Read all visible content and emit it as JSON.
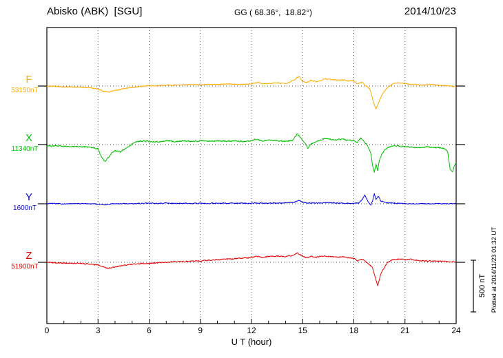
{
  "header": {
    "station": "Abisko (ABK)  [SGU]",
    "coords": "GG ( 68.36°,  18.82°)",
    "date": "2014/10/23"
  },
  "footer_note": "Plotted at 2014/11/23 01:32 UT",
  "scalebar": {
    "label": "500 nT",
    "nT": 500
  },
  "chart_data": {
    "type": "line",
    "title": "Abisko (ABK) [SGU] magnetogram 2014/10/23",
    "xlabel": "U T (hour)",
    "ylabel": "",
    "x_range": [
      0,
      24
    ],
    "x_ticks": [
      0,
      3,
      6,
      9,
      12,
      15,
      18,
      21,
      24
    ],
    "scale_nT": 500,
    "grid": "dotted vertical every 3 h, dotted horizontal baseline per component",
    "legend_position": "left of each trace",
    "series": [
      {
        "name": "F",
        "value_label": "53150nT",
        "baseline_nT": 53150,
        "color": "#ffaa00",
        "keypoints": [
          [
            0,
            0
          ],
          [
            0.5,
            -4
          ],
          [
            1,
            -8
          ],
          [
            1.5,
            -10
          ],
          [
            2,
            -12
          ],
          [
            2.5,
            -16
          ],
          [
            3,
            -28
          ],
          [
            3.3,
            -48
          ],
          [
            3.6,
            -58
          ],
          [
            4,
            -42
          ],
          [
            4.5,
            -26
          ],
          [
            5,
            -14
          ],
          [
            5.5,
            -4
          ],
          [
            6,
            4
          ],
          [
            6.5,
            2
          ],
          [
            7,
            10
          ],
          [
            7.5,
            8
          ],
          [
            8,
            12
          ],
          [
            9,
            14
          ],
          [
            9.5,
            16
          ],
          [
            10,
            16
          ],
          [
            10.5,
            18
          ],
          [
            11,
            20
          ],
          [
            11.5,
            18
          ],
          [
            12,
            22
          ],
          [
            12.3,
            36
          ],
          [
            12.6,
            26
          ],
          [
            13,
            26
          ],
          [
            13.5,
            30
          ],
          [
            14,
            26
          ],
          [
            14.5,
            60
          ],
          [
            14.8,
            95
          ],
          [
            15,
            48
          ],
          [
            15.2,
            32
          ],
          [
            15.5,
            56
          ],
          [
            15.8,
            42
          ],
          [
            16,
            46
          ],
          [
            16.3,
            72
          ],
          [
            16.6,
            62
          ],
          [
            17,
            56
          ],
          [
            17.3,
            62
          ],
          [
            17.6,
            52
          ],
          [
            18,
            46
          ],
          [
            18.2,
            22
          ],
          [
            18.5,
            36
          ],
          [
            18.7,
            2
          ],
          [
            18.9,
            -22
          ],
          [
            19,
            -62
          ],
          [
            19.15,
            -150
          ],
          [
            19.3,
            -225
          ],
          [
            19.45,
            -165
          ],
          [
            19.6,
            -100
          ],
          [
            19.8,
            -50
          ],
          [
            20,
            -8
          ],
          [
            20.3,
            22
          ],
          [
            20.6,
            32
          ],
          [
            21,
            22
          ],
          [
            21.5,
            16
          ],
          [
            22,
            12
          ],
          [
            22.5,
            14
          ],
          [
            23,
            8
          ],
          [
            23.4,
            4
          ],
          [
            23.7,
            -2
          ],
          [
            24,
            -8
          ]
        ]
      },
      {
        "name": "X",
        "value_label": "11340nT",
        "baseline_nT": 11340,
        "color": "#00c000",
        "keypoints": [
          [
            0,
            -14
          ],
          [
            0.5,
            -12
          ],
          [
            1,
            -18
          ],
          [
            1.5,
            -20
          ],
          [
            2,
            -20
          ],
          [
            2.5,
            -26
          ],
          [
            3,
            -42
          ],
          [
            3.2,
            -120
          ],
          [
            3.4,
            -165
          ],
          [
            3.6,
            -130
          ],
          [
            3.8,
            -85
          ],
          [
            4,
            -62
          ],
          [
            4.3,
            -72
          ],
          [
            4.6,
            -42
          ],
          [
            5,
            8
          ],
          [
            5.3,
            28
          ],
          [
            5.6,
            36
          ],
          [
            6,
            30
          ],
          [
            6.5,
            26
          ],
          [
            7,
            36
          ],
          [
            7.5,
            30
          ],
          [
            8,
            36
          ],
          [
            8.5,
            30
          ],
          [
            9,
            36
          ],
          [
            9.5,
            32
          ],
          [
            10,
            36
          ],
          [
            10.5,
            32
          ],
          [
            11,
            36
          ],
          [
            11.5,
            32
          ],
          [
            12,
            36
          ],
          [
            12.3,
            52
          ],
          [
            12.6,
            36
          ],
          [
            13,
            42
          ],
          [
            13.5,
            36
          ],
          [
            14,
            30
          ],
          [
            14.4,
            42
          ],
          [
            14.7,
            105
          ],
          [
            14.9,
            62
          ],
          [
            15.1,
            22
          ],
          [
            15.3,
            -32
          ],
          [
            15.5,
            10
          ],
          [
            15.8,
            30
          ],
          [
            16,
            42
          ],
          [
            16.3,
            56
          ],
          [
            16.6,
            52
          ],
          [
            17,
            46
          ],
          [
            17.3,
            52
          ],
          [
            17.6,
            42
          ],
          [
            18,
            36
          ],
          [
            18.2,
            22
          ],
          [
            18.4,
            62
          ],
          [
            18.6,
            32
          ],
          [
            18.8,
            -12
          ],
          [
            19,
            -85
          ],
          [
            19.1,
            -205
          ],
          [
            19.2,
            -270
          ],
          [
            19.3,
            -185
          ],
          [
            19.4,
            -250
          ],
          [
            19.5,
            -150
          ],
          [
            19.65,
            -92
          ],
          [
            19.8,
            -52
          ],
          [
            20,
            -30
          ],
          [
            20.3,
            -12
          ],
          [
            20.6,
            -16
          ],
          [
            21,
            -20
          ],
          [
            21.5,
            -26
          ],
          [
            22,
            -30
          ],
          [
            22.3,
            -22
          ],
          [
            22.6,
            -26
          ],
          [
            23,
            -30
          ],
          [
            23.3,
            -40
          ],
          [
            23.5,
            -62
          ],
          [
            23.65,
            -245
          ],
          [
            23.8,
            -262
          ],
          [
            23.9,
            -205
          ],
          [
            24,
            -172
          ]
        ]
      },
      {
        "name": "Y",
        "value_label": "1600nT",
        "baseline_nT": 1600,
        "color": "#0000dd",
        "keypoints": [
          [
            0,
            0
          ],
          [
            0.5,
            2
          ],
          [
            1,
            -2
          ],
          [
            1.5,
            0
          ],
          [
            2,
            2
          ],
          [
            2.5,
            0
          ],
          [
            3,
            -4
          ],
          [
            3.3,
            -10
          ],
          [
            3.6,
            -5
          ],
          [
            4,
            0
          ],
          [
            4.5,
            2
          ],
          [
            5,
            0
          ],
          [
            5.5,
            3
          ],
          [
            6,
            5
          ],
          [
            6.5,
            3
          ],
          [
            7,
            5
          ],
          [
            7.5,
            3
          ],
          [
            8,
            5
          ],
          [
            8.5,
            4
          ],
          [
            9,
            5
          ],
          [
            9.5,
            4
          ],
          [
            10,
            6
          ],
          [
            10.5,
            5
          ],
          [
            11,
            5
          ],
          [
            11.5,
            6
          ],
          [
            12,
            5
          ],
          [
            12.5,
            8
          ],
          [
            13,
            6
          ],
          [
            13.5,
            5
          ],
          [
            14,
            8
          ],
          [
            14.5,
            16
          ],
          [
            14.8,
            32
          ],
          [
            15,
            16
          ],
          [
            15.3,
            5
          ],
          [
            15.6,
            10
          ],
          [
            16,
            8
          ],
          [
            16.5,
            10
          ],
          [
            17,
            8
          ],
          [
            17.5,
            6
          ],
          [
            18,
            5
          ],
          [
            18.3,
            10
          ],
          [
            18.5,
            42
          ],
          [
            18.65,
            85
          ],
          [
            18.8,
            32
          ],
          [
            19,
            -16
          ],
          [
            19.1,
            30
          ],
          [
            19.2,
            95
          ],
          [
            19.3,
            42
          ],
          [
            19.45,
            72
          ],
          [
            19.6,
            26
          ],
          [
            19.8,
            16
          ],
          [
            20,
            10
          ],
          [
            20.5,
            5
          ],
          [
            21,
            2
          ],
          [
            21.5,
            0
          ],
          [
            22,
            2
          ],
          [
            22.5,
            0
          ],
          [
            23,
            2
          ],
          [
            23.5,
            0
          ],
          [
            24,
            0
          ]
        ]
      },
      {
        "name": "Z",
        "value_label": "51900nT",
        "baseline_nT": 51900,
        "color": "#e60000",
        "keypoints": [
          [
            0,
            0
          ],
          [
            0.5,
            -5
          ],
          [
            1,
            -8
          ],
          [
            1.5,
            -10
          ],
          [
            2,
            -12
          ],
          [
            2.5,
            -16
          ],
          [
            3,
            -26
          ],
          [
            3.3,
            -42
          ],
          [
            3.6,
            -56
          ],
          [
            4,
            -46
          ],
          [
            4.5,
            -30
          ],
          [
            5,
            -20
          ],
          [
            5.5,
            -15
          ],
          [
            6,
            -10
          ],
          [
            6.5,
            -5
          ],
          [
            7,
            0
          ],
          [
            7.5,
            5
          ],
          [
            8,
            8
          ],
          [
            8.5,
            10
          ],
          [
            9,
            15
          ],
          [
            9.5,
            20
          ],
          [
            10,
            25
          ],
          [
            10.5,
            30
          ],
          [
            11,
            35
          ],
          [
            11.5,
            40
          ],
          [
            12,
            46
          ],
          [
            12.3,
            56
          ],
          [
            12.6,
            50
          ],
          [
            13,
            56
          ],
          [
            13.5,
            60
          ],
          [
            14,
            56
          ],
          [
            14.4,
            66
          ],
          [
            14.7,
            88
          ],
          [
            15,
            62
          ],
          [
            15.2,
            42
          ],
          [
            15.5,
            56
          ],
          [
            15.8,
            50
          ],
          [
            16,
            56
          ],
          [
            16.3,
            62
          ],
          [
            16.6,
            56
          ],
          [
            17,
            52
          ],
          [
            17.3,
            52
          ],
          [
            17.6,
            46
          ],
          [
            18,
            40
          ],
          [
            18.2,
            16
          ],
          [
            18.5,
            30
          ],
          [
            18.7,
            5
          ],
          [
            18.9,
            -20
          ],
          [
            19.1,
            -52
          ],
          [
            19.25,
            -145
          ],
          [
            19.4,
            -228
          ],
          [
            19.55,
            -132
          ],
          [
            19.7,
            -72
          ],
          [
            19.85,
            -32
          ],
          [
            20,
            0
          ],
          [
            20.3,
            26
          ],
          [
            20.6,
            32
          ],
          [
            21,
            26
          ],
          [
            21.3,
            30
          ],
          [
            21.6,
            22
          ],
          [
            22,
            16
          ],
          [
            22.5,
            12
          ],
          [
            23,
            10
          ],
          [
            23.3,
            8
          ],
          [
            23.6,
            6
          ],
          [
            24,
            5
          ]
        ]
      }
    ]
  }
}
